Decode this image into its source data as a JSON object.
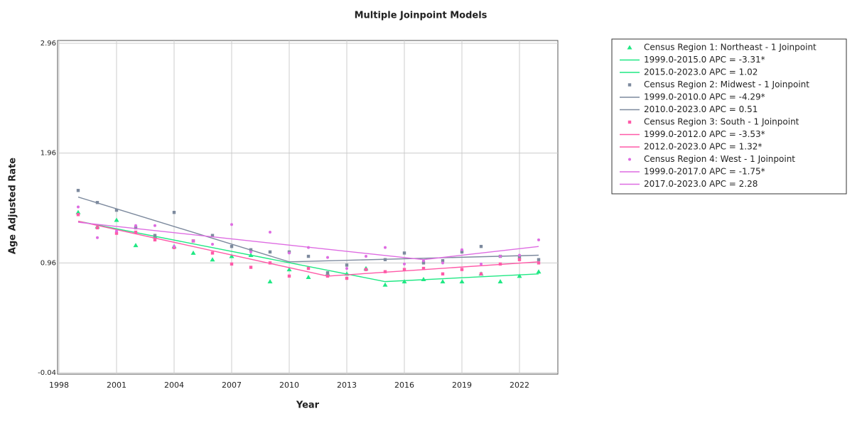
{
  "chart_data": {
    "type": "joinpoint",
    "title": "Multiple Joinpoint Models",
    "x_label": "Year",
    "y_label": "Age Adjusted Rate",
    "x": [
      1999,
      2000,
      2001,
      2002,
      2003,
      2004,
      2005,
      2006,
      2007,
      2008,
      2009,
      2010,
      2011,
      2012,
      2013,
      2014,
      2015,
      2016,
      2017,
      2018,
      2019,
      2020,
      2021,
      2022,
      2023
    ],
    "xlim": [
      1998,
      2024
    ],
    "xticks": [
      1998,
      2001,
      2004,
      2007,
      2010,
      2013,
      2016,
      2019,
      2022
    ],
    "ylim": [
      -0.04,
      2.96
    ],
    "yticks": [
      -0.04,
      0.96,
      1.96,
      2.96
    ],
    "grid": true,
    "series": [
      {
        "name": "Census Region 1: Northeast - 1 Joinpoint",
        "color": "#1fe883",
        "marker": "triangle",
        "values": [
          1.42,
          1.29,
          1.35,
          1.12,
          1.2,
          1.11,
          1.05,
          0.99,
          1.02,
          1.03,
          0.79,
          0.9,
          0.83,
          0.86,
          0.86,
          0.91,
          0.76,
          0.79,
          0.81,
          0.79,
          0.79,
          0.86,
          0.79,
          0.84,
          0.88
        ],
        "segments": [
          {
            "label": "1999.0-2015.0 APC  =  -3.31*",
            "x": [
              1999,
              2015
            ],
            "values": [
              1.34,
              0.79
            ]
          },
          {
            "label": "2015.0-2023.0 APC  =  1.02",
            "x": [
              2015,
              2023
            ],
            "values": [
              0.79,
              0.86
            ]
          }
        ]
      },
      {
        "name": "Census Region 2: Midwest - 1 Joinpoint",
        "color": "#7d8a9e",
        "marker": "square",
        "values": [
          1.62,
          1.51,
          1.44,
          1.28,
          1.21,
          1.42,
          1.16,
          1.21,
          1.11,
          1.08,
          1.06,
          1.06,
          1.02,
          0.87,
          0.94,
          0.9,
          0.99,
          1.05,
          0.96,
          0.98,
          1.06,
          1.11,
          1.02,
          1.01,
          0.99
        ],
        "segments": [
          {
            "label": "1999.0-2010.0 APC  =  -4.29*",
            "x": [
              1999,
              2010
            ],
            "values": [
              1.56,
              0.97
            ]
          },
          {
            "label": "2010.0-2023.0 APC  =  0.51",
            "x": [
              2010,
              2023
            ],
            "values": [
              0.97,
              1.03
            ]
          }
        ]
      },
      {
        "name": "Census Region 3: South - 1 Joinpoint",
        "color": "#ff5aa8",
        "marker": "square",
        "values": [
          1.4,
          1.28,
          1.23,
          1.24,
          1.17,
          1.1,
          1.16,
          1.05,
          0.95,
          0.92,
          0.96,
          0.84,
          0.91,
          0.84,
          0.82,
          0.9,
          0.88,
          0.9,
          0.91,
          0.86,
          0.9,
          0.86,
          0.95,
          0.99,
          0.96
        ],
        "segments": [
          {
            "label": "1999.0-2012.0 APC  =  -3.53*",
            "x": [
              1999,
              2012
            ],
            "values": [
              1.34,
              0.84
            ]
          },
          {
            "label": "2012.0-2023.0 APC  =  1.32*",
            "x": [
              2012,
              2023
            ],
            "values": [
              0.84,
              0.97
            ]
          }
        ]
      },
      {
        "name": "Census Region 4: West - 1 Joinpoint",
        "color": "#de6ce2",
        "marker": "dot",
        "values": [
          1.47,
          1.19,
          1.25,
          1.3,
          1.3,
          1.11,
          1.16,
          1.13,
          1.31,
          1.06,
          1.24,
          1.05,
          1.1,
          1.01,
          0.91,
          1.02,
          1.1,
          0.95,
          0.98,
          0.96,
          1.08,
          0.95,
          1.02,
          1.03,
          1.17
        ],
        "segments": [
          {
            "label": "1999.0-2017.0 APC  =  -1.75*",
            "x": [
              1999,
              2017
            ],
            "values": [
              1.33,
              0.99
            ]
          },
          {
            "label": "2017.0-2023.0 APC  =  2.28",
            "x": [
              2017,
              2023
            ],
            "values": [
              0.99,
              1.11
            ]
          }
        ]
      }
    ]
  }
}
